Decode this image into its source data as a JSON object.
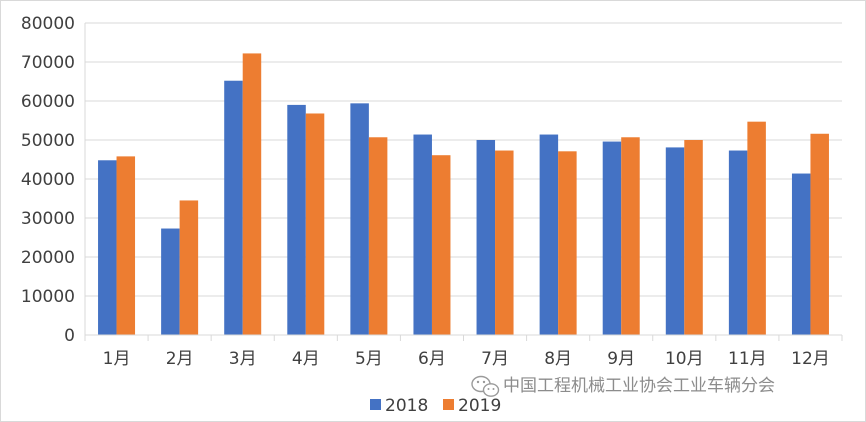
{
  "chart_data": {
    "type": "bar",
    "categories": [
      "1月",
      "2月",
      "3月",
      "4月",
      "5月",
      "6月",
      "7月",
      "8月",
      "9月",
      "10月",
      "11月",
      "12月"
    ],
    "series": [
      {
        "name": "2018",
        "color": "#4472C4",
        "values": [
          44800,
          27300,
          65200,
          59000,
          59400,
          51400,
          50000,
          51400,
          49600,
          48100,
          47300,
          41400
        ]
      },
      {
        "name": "2019",
        "color": "#ED7D31",
        "values": [
          45800,
          34500,
          72200,
          56800,
          50700,
          46100,
          47300,
          47100,
          50700,
          50000,
          54700,
          51600
        ]
      }
    ],
    "ylim": [
      0,
      80000
    ],
    "yticks": [
      "0",
      "10000",
      "20000",
      "30000",
      "40000",
      "50000",
      "60000",
      "70000",
      "80000"
    ],
    "grid": true,
    "legend_position": "bottom-center",
    "title": "",
    "xlabel": "",
    "ylabel": ""
  },
  "watermark": {
    "text": "中国工程机械工业协会工业车辆分会",
    "icon": "wechat-icon"
  }
}
